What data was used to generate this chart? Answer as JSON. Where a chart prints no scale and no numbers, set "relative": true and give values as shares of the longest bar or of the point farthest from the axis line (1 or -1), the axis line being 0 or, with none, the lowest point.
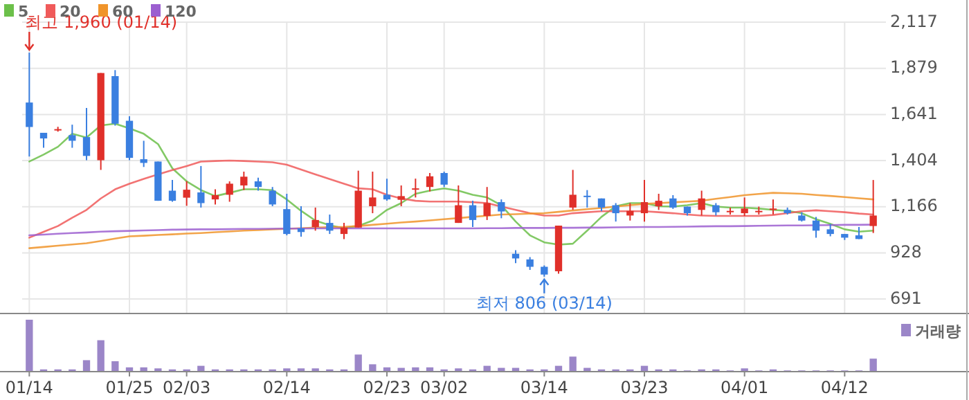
{
  "chart_data": [
    {
      "type": "candlestick",
      "categories": [
        "01/14",
        null,
        null,
        null,
        null,
        null,
        null,
        "01/25",
        null,
        null,
        null,
        "02/03",
        null,
        null,
        null,
        null,
        null,
        null,
        "02/14",
        null,
        null,
        null,
        null,
        null,
        null,
        "02/23",
        null,
        null,
        null,
        "03/02",
        null,
        null,
        null,
        null,
        null,
        null,
        "03/14",
        null,
        null,
        null,
        null,
        null,
        null,
        "03/23",
        null,
        null,
        null,
        null,
        null,
        null,
        "04/01",
        null,
        null,
        null,
        null,
        null,
        null,
        "04/12",
        null,
        null
      ],
      "ohlc": [
        [
          1703,
          1960,
          1425,
          1577
        ],
        [
          1547,
          1547,
          1470,
          1518
        ],
        [
          1563,
          1578,
          1553,
          1566
        ],
        [
          1535,
          1589,
          1470,
          1506
        ],
        [
          1525,
          1675,
          1406,
          1428
        ],
        [
          1406,
          1855,
          1356,
          1855
        ],
        [
          1839,
          1870,
          1584,
          1594
        ],
        [
          1609,
          1632,
          1406,
          1418
        ],
        [
          1411,
          1506,
          1371,
          1392
        ],
        [
          1399,
          1399,
          1197,
          1197
        ],
        [
          1249,
          1304,
          1192,
          1197
        ],
        [
          1213,
          1298,
          1171,
          1254
        ],
        [
          1240,
          1376,
          1162,
          1185
        ],
        [
          1204,
          1256,
          1178,
          1226
        ],
        [
          1228,
          1297,
          1192,
          1285
        ],
        [
          1276,
          1347,
          1252,
          1321
        ],
        [
          1297,
          1316,
          1249,
          1268
        ],
        [
          1249,
          1268,
          1169,
          1178
        ],
        [
          1154,
          1233,
          1019,
          1026
        ],
        [
          1055,
          1169,
          1012,
          1036
        ],
        [
          1062,
          1162,
          1043,
          1098
        ],
        [
          1083,
          1126,
          1026,
          1043
        ],
        [
          1026,
          1083,
          1000,
          1059
        ],
        [
          1059,
          1352,
          1059,
          1249
        ],
        [
          1169,
          1347,
          1133,
          1214
        ],
        [
          1228,
          1311,
          1197,
          1204
        ],
        [
          1202,
          1276,
          1169,
          1221
        ],
        [
          1255,
          1311,
          1214,
          1261
        ],
        [
          1268,
          1340,
          1245,
          1323
        ],
        [
          1340,
          1347,
          1268,
          1280
        ],
        [
          1083,
          1276,
          1083,
          1174
        ],
        [
          1174,
          1197,
          1062,
          1098
        ],
        [
          1119,
          1268,
          1098,
          1185
        ],
        [
          1190,
          1204,
          1107,
          1142
        ],
        [
          924,
          943,
          876,
          900
        ],
        [
          895,
          907,
          841,
          857
        ],
        [
          857,
          864,
          806,
          817
        ],
        [
          834,
          1069,
          821,
          1069
        ],
        [
          1162,
          1356,
          1150,
          1228
        ],
        [
          1223,
          1252,
          1162,
          1219
        ],
        [
          1209,
          1209,
          1143,
          1162
        ],
        [
          1174,
          1185,
          1090,
          1133
        ],
        [
          1121,
          1185,
          1095,
          1145
        ],
        [
          1133,
          1304,
          1090,
          1190
        ],
        [
          1169,
          1233,
          1150,
          1197
        ],
        [
          1209,
          1226,
          1155,
          1162
        ],
        [
          1167,
          1167,
          1121,
          1133
        ],
        [
          1150,
          1249,
          1121,
          1209
        ],
        [
          1174,
          1185,
          1121,
          1138
        ],
        [
          1143,
          1162,
          1126,
          1145
        ],
        [
          1133,
          1214,
          1119,
          1157
        ],
        [
          1143,
          1167,
          1126,
          1145
        ],
        [
          1155,
          1204,
          1126,
          1157
        ],
        [
          1150,
          1162,
          1126,
          1133
        ],
        [
          1121,
          1138,
          1090,
          1095
        ],
        [
          1095,
          1114,
          1007,
          1043
        ],
        [
          1050,
          1078,
          1014,
          1026
        ],
        [
          1026,
          1026,
          995,
          1007
        ],
        [
          1019,
          1062,
          1000,
          1000
        ],
        [
          1067,
          1304,
          1031,
          1121
        ]
      ],
      "series": [
        {
          "name": "5",
          "type": "line",
          "color": "#6cc04a",
          "values": [
            1399,
            1435,
            1475,
            1542,
            1523,
            1585,
            1594,
            1570,
            1542,
            1489,
            1364,
            1297,
            1252,
            1221,
            1238,
            1256,
            1256,
            1252,
            1204,
            1145,
            1095,
            1071,
            1055,
            1067,
            1095,
            1150,
            1185,
            1233,
            1249,
            1261,
            1249,
            1228,
            1214,
            1174,
            1090,
            1019,
            983,
            971,
            976,
            1043,
            1114,
            1169,
            1185,
            1185,
            1169,
            1167,
            1174,
            1185,
            1167,
            1162,
            1162,
            1157,
            1150,
            1145,
            1133,
            1102,
            1078,
            1050,
            1038,
            1043
          ]
        },
        {
          "name": "20",
          "type": "line",
          "color": "#f05a5a",
          "values": [
            1007,
            1037,
            1067,
            1110,
            1150,
            1209,
            1256,
            1285,
            1310,
            1333,
            1355,
            1376,
            1399,
            1402,
            1404,
            1402,
            1399,
            1395,
            1383,
            1358,
            1333,
            1309,
            1285,
            1261,
            1256,
            1228,
            1209,
            1197,
            1193,
            1193,
            1193,
            1190,
            1185,
            1167,
            1150,
            1133,
            1121,
            1121,
            1133,
            1138,
            1143,
            1143,
            1143,
            1143,
            1138,
            1133,
            1126,
            1121,
            1119,
            1119,
            1119,
            1119,
            1124,
            1133,
            1143,
            1148,
            1143,
            1138,
            1131,
            1126
          ]
        },
        {
          "name": "60",
          "type": "line",
          "color": "#f0942a",
          "values": [
            953,
            959,
            966,
            972,
            978,
            990,
            1002,
            1014,
            1017,
            1021,
            1024,
            1028,
            1031,
            1035,
            1039,
            1043,
            1046,
            1050,
            null,
            1056,
            1059,
            1061,
            1063,
            1067,
            1073,
            1079,
            1085,
            1090,
            1096,
            1102,
            1108,
            1114,
            1120,
            1126,
            1128,
            1131,
            1133,
            1140,
            1147,
            1154,
            1160,
            1167,
            1174,
            1181,
            1185,
            1189,
            1193,
            1197,
            1207,
            1216,
            1226,
            1232,
            1238,
            1236,
            1233,
            1227,
            1222,
            1216,
            1210,
            1204
          ]
        },
        {
          "name": "120",
          "type": "line",
          "color": "#9c5fd0",
          "values": [
            1019,
            1023,
            1027,
            1031,
            1034,
            1038,
            1040,
            1042,
            1044,
            1046,
            1048,
            1049,
            1050,
            1050,
            1051,
            1052,
            1052,
            1053,
            1054,
            1054,
            1055,
            1055,
            1055,
            1055,
            1055,
            1055,
            1055,
            1055,
            1055,
            1055,
            1055,
            1055,
            1056,
            1056,
            1057,
            1057,
            1057,
            1058,
            1058,
            1059,
            1059,
            1060,
            1061,
            1062,
            1062,
            1063,
            1064,
            1065,
            1066,
            1066,
            1067,
            1068,
            1069,
            1070,
            1070,
            1071,
            1072,
            1073,
            1073,
            1074
          ]
        }
      ],
      "ylim": [
        620,
        2117
      ],
      "yticks": [
        {
          "value": 691,
          "label": "691"
        },
        {
          "value": 928,
          "label": "928"
        },
        {
          "value": 1166,
          "label": "1,166"
        },
        {
          "value": 1404,
          "label": "1,404"
        },
        {
          "value": 1641,
          "label": "1,641"
        },
        {
          "value": 1879,
          "label": "1,879"
        },
        {
          "value": 2117,
          "label": "2,117"
        }
      ],
      "annotations": [
        {
          "text": "최고 1,960 (01/14)",
          "x": "01/14",
          "y": 1960
        },
        {
          "text": "최저 806 (03/14)",
          "x": "03/14",
          "y": 806
        }
      ],
      "grid": true,
      "legend": "top left",
      "tick_labels": "y"
    },
    {
      "type": "bar",
      "relative": true,
      "categories": [
        "01/14",
        null,
        null,
        null,
        null,
        null,
        null,
        "01/25",
        null,
        null,
        null,
        "02/03",
        null,
        null,
        null,
        null,
        null,
        null,
        "02/14",
        null,
        null,
        null,
        null,
        null,
        null,
        "02/23",
        null,
        null,
        null,
        "03/02",
        null,
        null,
        null,
        null,
        null,
        null,
        "03/14",
        null,
        null,
        null,
        null,
        null,
        null,
        "03/23",
        null,
        null,
        null,
        null,
        null,
        null,
        "04/01",
        null,
        null,
        null,
        null,
        null,
        null,
        "04/12",
        null,
        null
      ],
      "series": [
        {
          "name": "거래량",
          "color": "#9b86c8",
          "values": [
            1,
            0.03,
            0.03,
            0.03,
            0.21,
            0.6,
            0.19,
            0.07,
            0.07,
            0.05,
            0.03,
            0.03,
            0.1,
            0.03,
            0.03,
            0.03,
            0.03,
            0.03,
            0.05,
            0.05,
            0.05,
            0.03,
            0.03,
            0.32,
            0.13,
            0.07,
            0.06,
            0.07,
            0.07,
            0.03,
            0.05,
            0.03,
            0.1,
            0.06,
            0.06,
            0.03,
            0.03,
            0.1,
            0.28,
            0.06,
            0.03,
            0.03,
            0.03,
            0.1,
            0.03,
            0.03,
            0.01,
            0.03,
            0.03,
            0.01,
            0.05,
            0.01,
            0.03,
            0.01,
            0.01,
            0.01,
            0.01,
            0.01,
            0.01,
            0.24
          ]
        }
      ],
      "legend": "top right",
      "tick_labels": "x"
    }
  ]
}
